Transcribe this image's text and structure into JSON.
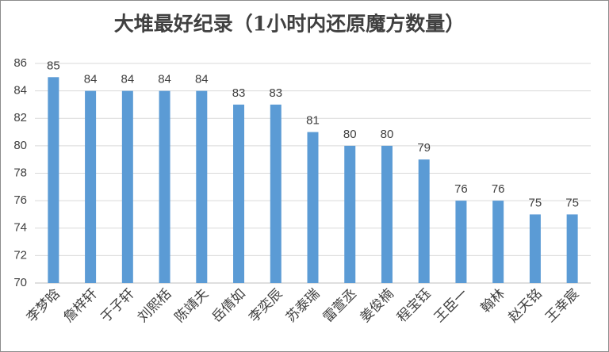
{
  "chart_data": {
    "type": "bar",
    "title": "大堆最好纪录（1小时内还原魔方数量）",
    "categories": [
      "李梦晗",
      "詹梓轩",
      "于子轩",
      "刘熙栝",
      "陈靖夫",
      "岳倩如",
      "李奕辰",
      "苏泰瑞",
      "雷萱丞",
      "姜俊楠",
      "程宝钰",
      "王臣一",
      "翰林",
      "赵天铭",
      "王幸宸"
    ],
    "values": [
      85,
      84,
      84,
      84,
      84,
      83,
      83,
      81,
      80,
      80,
      79,
      76,
      76,
      75,
      75
    ],
    "color": "#5b9bd5",
    "ylim": [
      70,
      86
    ],
    "yticks": [
      70,
      72,
      74,
      76,
      78,
      80,
      82,
      84,
      86
    ],
    "grid": true
  }
}
